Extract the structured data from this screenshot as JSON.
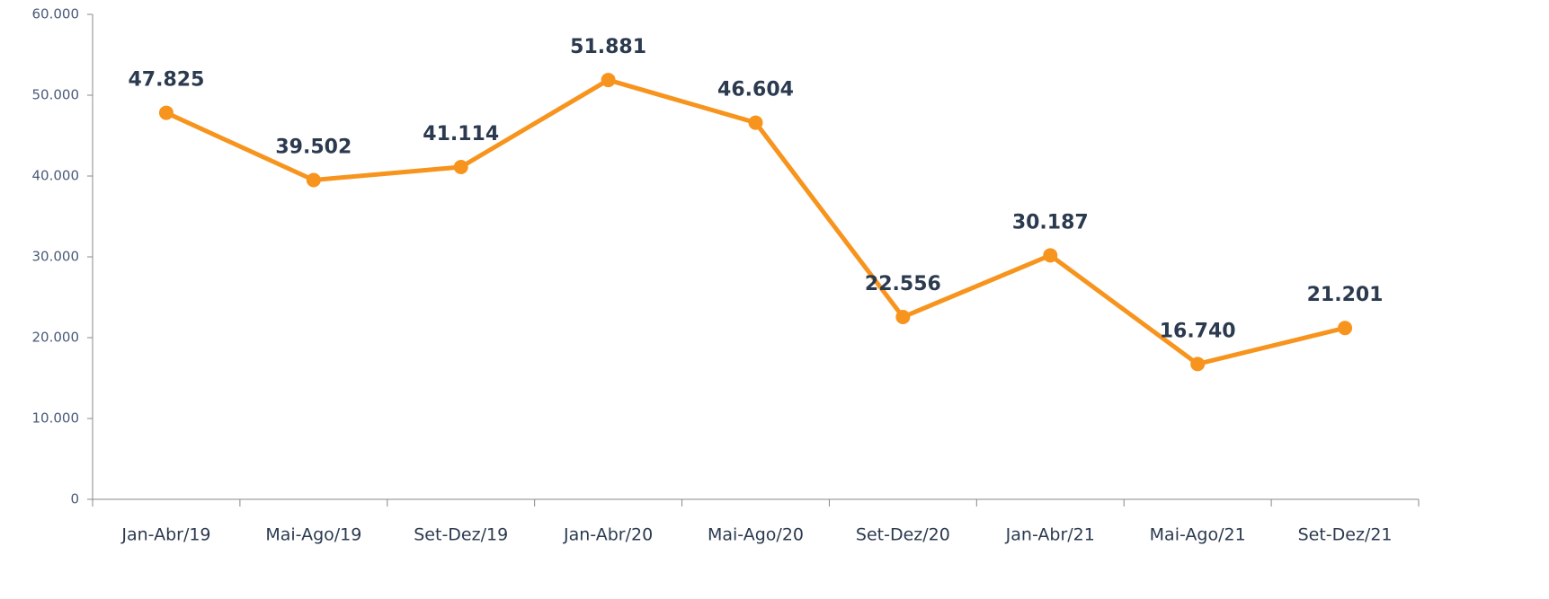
{
  "chart_data": {
    "type": "line",
    "categories": [
      "Jan-Abr/19",
      "Mai-Ago/19",
      "Set-Dez/19",
      "Jan-Abr/20",
      "Mai-Ago/20",
      "Set-Dez/20",
      "Jan-Abr/21",
      "Mai-Ago/21",
      "Set-Dez/21"
    ],
    "series": [
      {
        "color": "#f7941d",
        "values": [
          47825,
          39502,
          41114,
          51881,
          46604,
          22556,
          30187,
          16740,
          21201
        ],
        "value_labels": [
          "47.825",
          "39.502",
          "41.114",
          "51.881",
          "46.604",
          "22.556",
          "30.187",
          "16.740",
          "21.201"
        ]
      }
    ],
    "ylim": [
      0,
      60000
    ],
    "yticks": [
      0,
      {
        "value": 10000,
        "label": "10.000"
      },
      {
        "value": 20000,
        "label": "20.000"
      },
      {
        "value": 30000,
        "label": "30.000"
      },
      {
        "value": 40000,
        "label": "40.000"
      },
      {
        "value": 50000,
        "label": "50.000"
      },
      {
        "value": 60000,
        "label": "60.000"
      }
    ]
  }
}
